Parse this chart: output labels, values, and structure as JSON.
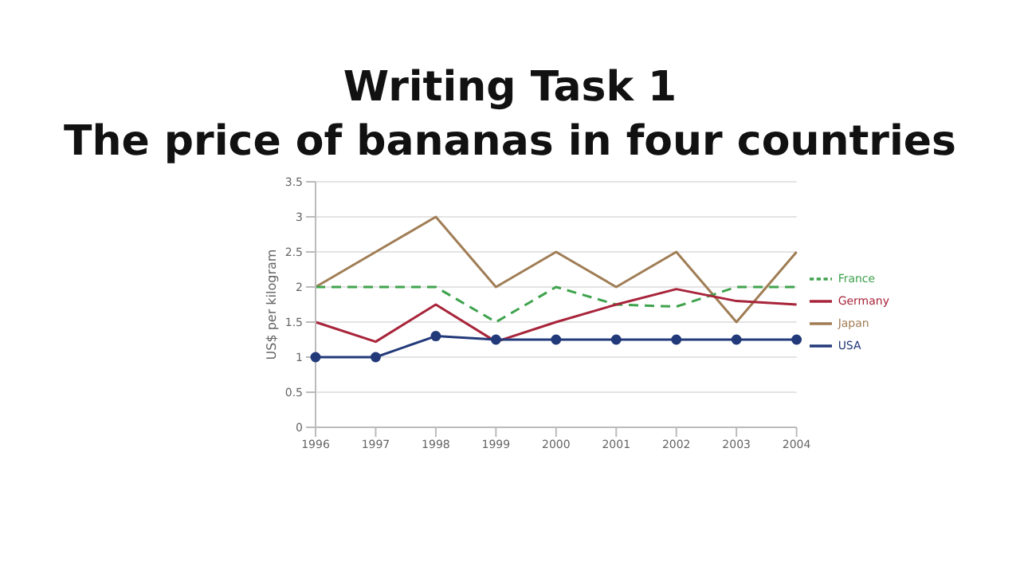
{
  "chart_data": {
    "type": "line",
    "title": "Writing Task 1",
    "subtitle": "The price of bananas in four countries",
    "ylabel": "US$ per kilogram",
    "categories": [
      "1996",
      "1997",
      "1998",
      "1999",
      "2000",
      "2001",
      "2002",
      "2003",
      "2004"
    ],
    "series": [
      {
        "name": "Japan",
        "color": "#a07d55",
        "values": [
          2,
          2.5,
          3,
          2,
          2.5,
          2,
          2.5,
          1.5,
          2.5
        ]
      },
      {
        "name": "France",
        "color": "#3fa34d",
        "line_style": "dashed",
        "values": [
          2,
          2,
          2,
          1.5,
          2,
          1.75,
          1.72,
          2,
          2
        ]
      },
      {
        "name": "Germany",
        "color": "#a8243a",
        "values": [
          1.5,
          1.22,
          1.75,
          1.22,
          1.5,
          1.75,
          1.97,
          1.8,
          1.75
        ]
      },
      {
        "name": "USA",
        "color": "#233a7a",
        "marker": "circle",
        "values": [
          1,
          1,
          1.3,
          1.25,
          1.25,
          1.25,
          1.25,
          1.25,
          1.25
        ]
      }
    ],
    "ylim": [
      0,
      3.5
    ],
    "yticks": [
      0,
      0.5,
      1,
      1.5,
      2,
      2.5,
      3,
      3.5
    ],
    "grid": "y",
    "legend": "right"
  }
}
